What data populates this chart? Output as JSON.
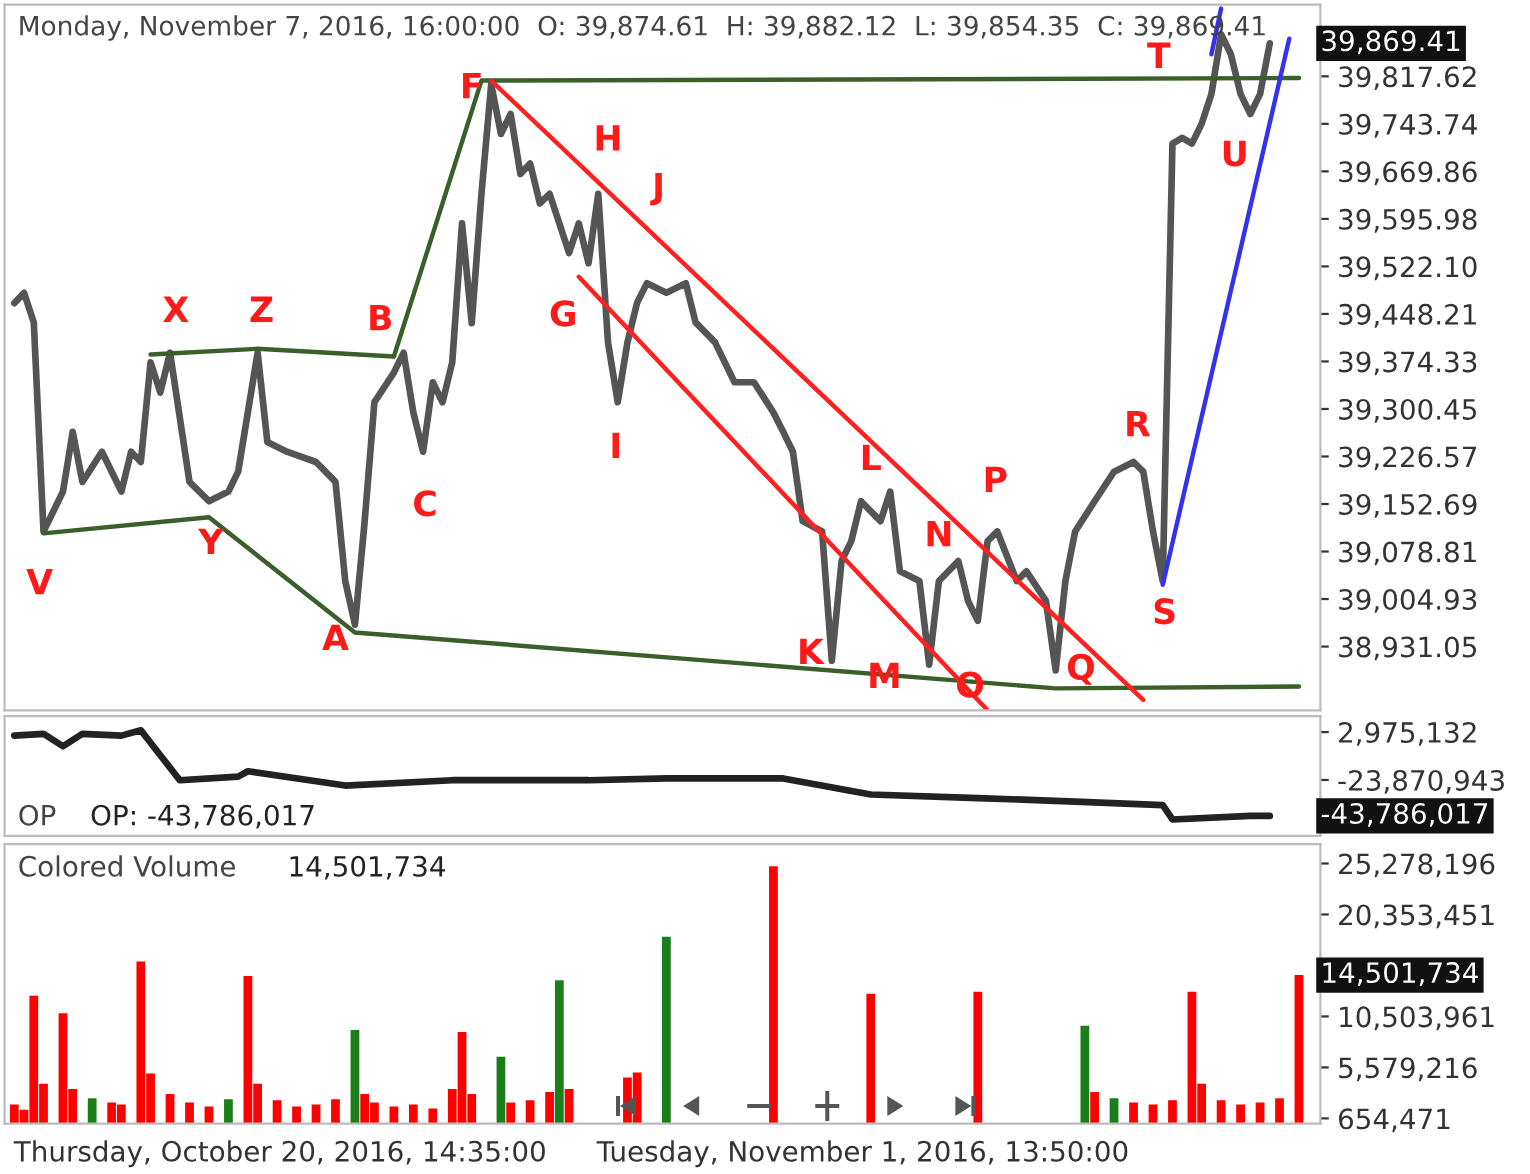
{
  "chart_data": [
    {
      "type": "line",
      "title": "Monday, November 7, 2016, 16:00:00  O: 39,874.61  H: 39,882.12  L: 39,854.35  C: 39,869.41",
      "ylim": [
        38832,
        39929
      ],
      "tick_labels": "y",
      "categories": [
        null,
        null,
        null,
        null,
        null,
        null,
        null,
        null,
        null,
        null,
        null,
        null,
        null,
        null,
        null,
        null,
        null,
        null,
        null,
        null,
        null,
        null,
        null,
        null,
        null,
        null,
        null,
        null,
        null,
        null,
        null,
        null,
        null,
        null,
        null,
        null,
        null,
        null,
        null,
        null,
        null,
        null,
        null,
        null,
        null,
        null,
        null,
        null,
        null,
        null,
        null,
        null,
        null,
        null,
        null,
        null,
        null,
        null,
        null,
        null,
        null,
        null,
        null,
        null,
        null,
        null,
        null,
        null,
        null,
        null,
        null,
        null,
        null,
        null,
        null,
        null,
        null,
        null,
        null,
        null,
        null,
        null,
        null,
        null,
        null,
        null,
        null,
        null,
        null,
        null,
        null,
        null,
        null,
        null,
        null,
        null,
        null,
        null,
        null,
        null,
        null,
        null,
        null,
        null,
        null,
        null,
        null,
        null,
        null,
        null,
        null,
        null,
        null,
        null,
        null,
        null,
        null,
        null,
        null,
        null,
        null,
        null,
        null,
        null,
        null,
        null,
        null,
        null,
        null,
        null,
        null,
        null,
        null
      ],
      "yticks": [
        {
          "value": 38931.05,
          "label": "38,931.05"
        },
        {
          "value": 39004.93,
          "label": "39,004.93"
        },
        {
          "value": 39078.81,
          "label": "39,078.81"
        },
        {
          "value": 39152.69,
          "label": "39,152.69"
        },
        {
          "value": 39226.57,
          "label": "39,226.57"
        },
        {
          "value": 39300.45,
          "label": "39,300.45"
        },
        {
          "value": 39374.33,
          "label": "39,374.33"
        },
        {
          "value": 39448.21,
          "label": "39,448.21"
        },
        {
          "value": 39522.1,
          "label": "39,522.10"
        },
        {
          "value": 39595.98,
          "label": "39,595.98"
        },
        {
          "value": 39669.86,
          "label": "39,669.86"
        },
        {
          "value": 39743.74,
          "label": "39,743.74"
        },
        {
          "value": 39817.62,
          "label": "39,817.62"
        }
      ],
      "series": [
        {
          "color": "#555555",
          "values": [
            39465,
            39481,
            39435,
            39110,
            null,
            39172,
            39265,
            39187,
            null,
            39234,
            null,
            39172,
            39234,
            39218,
            39373,
            39326,
            39388,
            null,
            39187,
            null,
            39157,
            null,
            39172,
            39203,
            null,
            39388,
            39249,
            null,
            39234,
            null,
            null,
            39218,
            null,
            39187,
            39033,
            38965,
            39126,
            39311,
            null,
            39357,
            39388,
            39295,
            39234,
            39342,
            39311,
            39373,
            39589,
            39434,
            39635,
            39805,
            39728,
            39759,
            39666,
            39682,
            39620,
            39635,
            null,
            39543,
            39589,
            39527,
            39635,
            39404,
            39311,
            39404,
            39466,
            39496,
            null,
            39481,
            null,
            39496,
            39435,
            null,
            39404,
            null,
            39342,
            null,
            39342,
            null,
            39295,
            39265,
            39234,
            39126,
            null,
            39110,
            38909,
            39064,
            39095,
            39157,
            null,
            39126,
            39172,
            39048,
            null,
            39033,
            38903,
            39033,
            null,
            39064,
            39002,
            38971,
            39095,
            39110,
            null,
            39033,
            39048,
            null,
            39002,
            38894,
            39033,
            39110,
            null,
            39157,
            null,
            39203,
            null,
            39218,
            39203,
            39110,
            39033,
            39713,
            39722,
            39713,
            39744,
            39790,
            39883,
            39852,
            39790,
            39759,
            39790,
            39869,
            null,
            null,
            null
          ]
        },
        {
          "color": "#3a5f2a",
          "values": [
            null,
            null,
            null,
            39107,
            null,
            null,
            null,
            null,
            null,
            null,
            null,
            null,
            null,
            null,
            null,
            null,
            null,
            null,
            null,
            null,
            39132,
            null,
            null,
            null,
            null,
            null,
            null,
            null,
            null,
            null,
            null,
            null,
            null,
            null,
            null,
            38953,
            null,
            null,
            null,
            null,
            null,
            null,
            null,
            null,
            null,
            null,
            null,
            null,
            null,
            null,
            null,
            null,
            null,
            null,
            null,
            null,
            null,
            null,
            null,
            null,
            null,
            null,
            null,
            null,
            null,
            null,
            null,
            null,
            null,
            null,
            null,
            null,
            null,
            null,
            null,
            null,
            null,
            null,
            null,
            null,
            null,
            null,
            null,
            null,
            null,
            null,
            null,
            null,
            null,
            null,
            null,
            null,
            null,
            null,
            null,
            null,
            null,
            null,
            null,
            null,
            null,
            null,
            null,
            null,
            null,
            null,
            null,
            38866,
            null,
            null,
            null,
            null,
            null,
            null,
            null,
            null,
            null,
            null,
            null,
            null,
            null,
            null,
            null,
            null,
            null,
            null,
            null,
            null,
            null,
            null,
            null,
            null,
            38869
          ]
        },
        {
          "color": "#3a5f2a",
          "values": [
            null,
            null,
            null,
            null,
            null,
            null,
            null,
            null,
            null,
            null,
            null,
            null,
            null,
            null,
            39385,
            null,
            null,
            null,
            null,
            null,
            null,
            null,
            null,
            null,
            null,
            39394,
            null,
            null,
            null,
            null,
            null,
            null,
            null,
            null,
            null,
            null,
            null,
            null,
            null,
            39382,
            null,
            null,
            null,
            null,
            null,
            null,
            null,
            null,
            39811,
            null,
            null,
            null,
            null,
            null,
            null,
            null,
            null,
            null,
            null,
            null,
            null,
            null,
            null,
            null,
            null,
            null,
            null,
            null,
            null,
            null,
            null,
            null,
            null,
            null,
            null,
            null,
            null,
            null,
            null,
            null,
            null,
            null,
            null,
            null,
            null,
            null,
            null,
            null,
            null,
            null,
            null,
            null,
            null,
            null,
            null,
            null,
            null,
            null,
            null,
            null,
            null,
            null,
            null,
            null,
            null,
            null,
            null,
            null,
            null,
            null,
            null,
            null,
            null,
            null,
            null,
            null,
            null,
            null,
            null,
            null,
            null,
            null,
            null,
            null,
            null,
            null,
            null,
            null,
            null,
            null,
            null,
            null,
            39815
          ]
        },
        {
          "color": "#ff2020",
          "values": [
            null,
            null,
            null,
            null,
            null,
            null,
            null,
            null,
            null,
            null,
            null,
            null,
            null,
            null,
            null,
            null,
            null,
            null,
            null,
            null,
            null,
            null,
            null,
            null,
            null,
            null,
            null,
            null,
            null,
            null,
            null,
            null,
            null,
            null,
            null,
            null,
            null,
            null,
            null,
            null,
            null,
            null,
            null,
            null,
            null,
            null,
            null,
            null,
            null,
            39811,
            null,
            null,
            null,
            null,
            null,
            null,
            null,
            null,
            null,
            null,
            null,
            null,
            null,
            null,
            null,
            null,
            null,
            null,
            null,
            null,
            null,
            null,
            null,
            null,
            null,
            null,
            null,
            null,
            null,
            null,
            null,
            null,
            null,
            null,
            null,
            null,
            null,
            null,
            null,
            null,
            null,
            null,
            null,
            null,
            null,
            null,
            null,
            null,
            null,
            null,
            null,
            null,
            null,
            null,
            null,
            null,
            null,
            null,
            null,
            null,
            null,
            null,
            null,
            null,
            null,
            null,
            38848,
            null,
            null,
            null,
            null,
            null,
            null,
            null,
            null,
            null,
            null,
            null,
            null,
            null,
            null,
            null,
            null
          ]
        },
        {
          "color": "#ff2020",
          "values": [
            null,
            null,
            null,
            null,
            null,
            null,
            null,
            null,
            null,
            null,
            null,
            null,
            null,
            null,
            null,
            null,
            null,
            null,
            null,
            null,
            null,
            null,
            null,
            null,
            null,
            null,
            null,
            null,
            null,
            null,
            null,
            null,
            null,
            null,
            null,
            null,
            null,
            null,
            null,
            null,
            null,
            null,
            null,
            null,
            null,
            null,
            null,
            null,
            null,
            null,
            null,
            null,
            null,
            null,
            null,
            null,
            null,
            null,
            39506,
            null,
            null,
            null,
            null,
            null,
            null,
            null,
            null,
            null,
            null,
            null,
            null,
            null,
            null,
            null,
            null,
            null,
            null,
            null,
            null,
            null,
            null,
            null,
            null,
            null,
            null,
            null,
            null,
            null,
            null,
            null,
            null,
            null,
            null,
            null,
            null,
            null,
            null,
            null,
            null,
            null,
            38832,
            null,
            null,
            null,
            null,
            null,
            null,
            null,
            null,
            null,
            null,
            null,
            null,
            null,
            null,
            null,
            null,
            null,
            null,
            null,
            null,
            null,
            null,
            null,
            null,
            null,
            null,
            null,
            null,
            null,
            null,
            null,
            null
          ]
        },
        {
          "color": "#3333ee",
          "values": [
            null,
            null,
            null,
            null,
            null,
            null,
            null,
            null,
            null,
            null,
            null,
            null,
            null,
            null,
            null,
            null,
            null,
            null,
            null,
            null,
            null,
            null,
            null,
            null,
            null,
            null,
            null,
            null,
            null,
            null,
            null,
            null,
            null,
            null,
            null,
            null,
            null,
            null,
            null,
            null,
            null,
            null,
            null,
            null,
            null,
            null,
            null,
            null,
            null,
            null,
            null,
            null,
            null,
            null,
            null,
            null,
            null,
            null,
            null,
            null,
            null,
            null,
            null,
            null,
            null,
            null,
            null,
            null,
            null,
            null,
            null,
            null,
            null,
            null,
            null,
            null,
            null,
            null,
            null,
            null,
            null,
            null,
            null,
            null,
            null,
            null,
            null,
            null,
            null,
            null,
            null,
            null,
            null,
            null,
            null,
            null,
            null,
            null,
            null,
            null,
            null,
            null,
            null,
            null,
            null,
            null,
            null,
            null,
            null,
            null,
            null,
            null,
            null,
            null,
            null,
            null,
            null,
            null,
            39027,
            null,
            null,
            null,
            null,
            null,
            null,
            null,
            null,
            null,
            null,
            null,
            null,
            39876,
            null
          ]
        },
        {
          "color": "#3333ee",
          "values": [
            null,
            null,
            null,
            null,
            null,
            null,
            null,
            null,
            null,
            null,
            null,
            null,
            null,
            null,
            null,
            null,
            null,
            null,
            null,
            null,
            null,
            null,
            null,
            null,
            null,
            null,
            null,
            null,
            null,
            null,
            null,
            null,
            null,
            null,
            null,
            null,
            null,
            null,
            null,
            null,
            null,
            null,
            null,
            null,
            null,
            null,
            null,
            null,
            null,
            null,
            null,
            null,
            null,
            null,
            null,
            null,
            null,
            null,
            null,
            null,
            null,
            null,
            null,
            null,
            null,
            null,
            null,
            null,
            null,
            null,
            null,
            null,
            null,
            null,
            null,
            null,
            null,
            null,
            null,
            null,
            null,
            null,
            null,
            null,
            null,
            null,
            null,
            null,
            null,
            null,
            null,
            null,
            null,
            null,
            null,
            null,
            null,
            null,
            null,
            null,
            null,
            null,
            null,
            null,
            null,
            null,
            null,
            null,
            null,
            null,
            null,
            null,
            null,
            null,
            null,
            null,
            null,
            null,
            null,
            null,
            null,
            null,
            null,
            39852,
            39923,
            null,
            null,
            null,
            null,
            null,
            null,
            null,
            null
          ]
        }
      ],
      "annotations": [
        "F",
        "H",
        "J",
        "G",
        "I",
        "X",
        "Z",
        "B",
        "C",
        "V",
        "Y",
        "A",
        "K",
        "L",
        "M",
        "N",
        "P",
        "O",
        "Q",
        "R",
        "S",
        "T",
        "U",
        "39,869.41"
      ]
    },
    {
      "type": "line",
      "title": "OP",
      "ylim": [
        -55200000,
        11900000
      ],
      "tick_labels": "y",
      "categories": [
        null,
        null,
        null,
        null,
        null,
        null,
        null,
        null,
        null,
        null,
        null,
        null,
        null,
        null,
        null,
        null,
        null,
        null,
        null,
        null,
        null,
        null,
        null,
        null,
        null,
        null,
        null,
        null,
        null,
        null,
        null,
        null,
        null,
        null,
        null,
        null,
        null,
        null,
        null,
        null,
        null,
        null,
        null,
        null,
        null,
        null,
        null,
        null,
        null,
        null,
        null,
        null,
        null,
        null,
        null,
        null,
        null,
        null,
        null,
        null,
        null,
        null,
        null,
        null,
        null,
        null,
        null,
        null,
        null,
        null,
        null,
        null,
        null,
        null,
        null,
        null,
        null,
        null,
        null,
        null,
        null,
        null,
        null,
        null,
        null,
        null,
        null,
        null,
        null,
        null,
        null,
        null,
        null,
        null,
        null,
        null,
        null,
        null,
        null,
        null,
        null,
        null,
        null,
        null,
        null,
        null,
        null,
        null,
        null,
        null,
        null,
        null,
        null,
        null,
        null,
        null,
        null,
        null,
        null,
        null,
        null,
        null,
        null,
        null,
        null,
        null,
        null,
        null,
        null,
        null,
        null,
        null,
        null
      ],
      "yticks": [
        {
          "value": 2975132,
          "label": "2,975,132"
        },
        {
          "value": -23870943,
          "label": "-23,870,943"
        }
      ],
      "series": [
        {
          "color": "#222222",
          "values": [
            1000000,
            null,
            null,
            2000000,
            null,
            -5000000,
            null,
            2000000,
            null,
            null,
            null,
            1000000,
            null,
            4000000,
            null,
            -10000000,
            null,
            -24000000,
            null,
            null,
            null,
            null,
            null,
            -22000000,
            -19000000,
            null,
            null,
            null,
            null,
            null,
            null,
            null,
            null,
            null,
            -27000000,
            null,
            null,
            null,
            null,
            null,
            null,
            null,
            null,
            null,
            null,
            -24000000,
            null,
            null,
            null,
            null,
            null,
            null,
            null,
            null,
            null,
            null,
            null,
            null,
            null,
            -24000000,
            null,
            null,
            null,
            null,
            null,
            null,
            null,
            -23000000,
            null,
            null,
            null,
            null,
            null,
            null,
            null,
            null,
            null,
            null,
            null,
            -23000000,
            null,
            null,
            null,
            null,
            null,
            null,
            null,
            null,
            -32000000,
            null,
            null,
            null,
            null,
            null,
            null,
            null,
            null,
            null,
            null,
            -34000000,
            null,
            null,
            null,
            null,
            null,
            null,
            null,
            null,
            null,
            -36000000,
            null,
            null,
            null,
            null,
            null,
            null,
            null,
            null,
            -38000000,
            -46000000,
            null,
            null,
            null,
            null,
            null,
            null,
            null,
            -44000000,
            null,
            -44000000,
            null,
            null,
            null
          ]
        }
      ],
      "annotations": [
        "OP: -43,786,017",
        "-43,786,017"
      ]
    },
    {
      "type": "bar",
      "title": "Colored Volume",
      "ylim": [
        160000,
        27150000
      ],
      "tick_labels": "y",
      "categories": [
        null,
        null,
        null,
        null,
        null,
        null,
        null,
        null,
        null,
        null,
        null,
        null,
        null,
        null,
        null,
        null,
        null,
        null,
        null,
        null,
        null,
        null,
        null,
        null,
        null,
        null,
        null,
        null,
        null,
        null,
        null,
        null,
        null,
        null,
        null,
        null,
        null,
        null,
        null,
        null,
        null,
        null,
        null,
        null,
        null,
        null,
        null,
        null,
        null,
        null,
        null,
        null,
        null,
        null,
        null,
        null,
        null,
        null,
        null,
        null,
        null,
        null,
        null,
        null,
        null,
        null,
        null,
        null,
        null,
        null,
        null,
        null,
        null,
        null,
        null,
        null,
        null,
        null,
        null,
        null,
        null,
        null,
        null,
        null,
        null,
        null,
        null,
        null,
        null,
        null,
        null,
        null,
        null,
        null,
        null,
        null,
        null,
        null,
        null,
        null,
        null,
        null,
        null,
        null,
        null,
        null,
        null,
        null,
        null,
        null,
        null,
        null,
        null,
        null,
        null,
        null,
        null,
        null,
        null,
        null,
        null,
        null,
        null,
        null,
        null,
        null,
        null,
        null,
        null,
        null,
        null,
        null,
        null
      ],
      "yticks": [
        {
          "value": 654471,
          "label": "654,471"
        },
        {
          "value": 5579216,
          "label": "5,579,216"
        },
        {
          "value": 10503961,
          "label": "10,503,961"
        },
        {
          "value": 20353451,
          "label": "20,353,451"
        },
        {
          "value": 25278196,
          "label": "25,278,196"
        }
      ],
      "series": [
        {
          "values": [
            2000000,
            1500000,
            12500000,
            4000000,
            null,
            10800000,
            3500000,
            null,
            2600000,
            null,
            2200000,
            2000000,
            null,
            15800000,
            5000000,
            null,
            3000000,
            null,
            2200000,
            null,
            1800000,
            null,
            2500000,
            null,
            14400000,
            4000000,
            null,
            2400000,
            null,
            1800000,
            null,
            2000000,
            null,
            2500000,
            null,
            9200000,
            3000000,
            2200000,
            null,
            1800000,
            null,
            2000000,
            null,
            1600000,
            null,
            3500000,
            9000000,
            3000000,
            null,
            null,
            6600000,
            2200000,
            null,
            2400000,
            null,
            3200000,
            14000000,
            3500000,
            null,
            null,
            null,
            null,
            null,
            4600000,
            5100000,
            null,
            null,
            18200000,
            null,
            null,
            null,
            null,
            null,
            null,
            null,
            null,
            null,
            null,
            25000000,
            null,
            null,
            null,
            null,
            null,
            null,
            null,
            null,
            null,
            12700000,
            null,
            null,
            null,
            null,
            null,
            null,
            null,
            null,
            null,
            null,
            12900000,
            null,
            null,
            null,
            null,
            null,
            null,
            null,
            null,
            null,
            null,
            9600000,
            3200000,
            null,
            2600000,
            null,
            2200000,
            null,
            2000000,
            null,
            2400000,
            null,
            12900000,
            4000000,
            null,
            2400000,
            null,
            2000000,
            null,
            2200000,
            null,
            2600000,
            null,
            14500000
          ],
          "colors": [
            "#ff0000",
            "#ff0000",
            "#ff0000",
            "#ff0000",
            "#ff0000",
            "#ff0000",
            "#ff0000",
            "#ff0000",
            "#1a7f1a",
            "#ff0000",
            "#ff0000",
            "#ff0000",
            "#ff0000",
            "#ff0000",
            "#ff0000",
            "#ff0000",
            "#ff0000",
            "#ff0000",
            "#ff0000",
            "#ff0000",
            "#ff0000",
            "#ff0000",
            "#1a7f1a",
            "#ff0000",
            "#ff0000",
            "#ff0000",
            "#ff0000",
            "#ff0000",
            "#ff0000",
            "#ff0000",
            "#ff0000",
            "#ff0000",
            "#ff0000",
            "#ff0000",
            "#ff0000",
            "#1a7f1a",
            "#ff0000",
            "#ff0000",
            "#ff0000",
            "#ff0000",
            "#ff0000",
            "#ff0000",
            "#ff0000",
            "#ff0000",
            "#ff0000",
            "#ff0000",
            "#ff0000",
            "#ff0000",
            "#ff0000",
            "#ff0000",
            "#1a7f1a",
            "#ff0000",
            "#ff0000",
            "#ff0000",
            "#ff0000",
            "#ff0000",
            "#1a7f1a",
            "#ff0000",
            "#ff0000",
            "#ff0000",
            "#ff0000",
            "#ff0000",
            "#ff0000",
            "#ff0000",
            "#ff0000",
            "#ff0000",
            "#ff0000",
            "#1a7f1a",
            "#ff0000",
            "#ff0000",
            "#ff0000",
            "#ff0000",
            "#ff0000",
            "#ff0000",
            "#ff0000",
            "#ff0000",
            "#ff0000",
            "#ff0000",
            "#ff0000",
            "#ff0000",
            "#ff0000",
            "#ff0000",
            "#ff0000",
            "#ff0000",
            "#ff0000",
            "#ff0000",
            "#ff0000",
            "#ff0000",
            "#ff0000",
            "#ff0000",
            "#ff0000",
            "#ff0000",
            "#ff0000",
            "#ff0000",
            "#ff0000",
            "#ff0000",
            "#ff0000",
            "#ff0000",
            "#ff0000",
            "#ff0000",
            "#ff0000",
            "#ff0000",
            "#ff0000",
            "#ff0000",
            "#ff0000",
            "#ff0000",
            "#ff0000",
            "#ff0000",
            "#1a7f1a",
            "#ff0000",
            "#1a7f1a",
            "#ff0000",
            "#ff0000",
            "#1a7f1a",
            "#ff0000",
            "#ff0000",
            "#ff0000",
            "#ff0000",
            "#ff0000",
            "#ff0000",
            "#ff0000",
            "#ff0000",
            "#ff0000",
            "#ff0000",
            "#ff0000",
            "#ff0000",
            "#ff0000",
            "#ff0000",
            "#ff0000",
            "#ff0000",
            "#ff0000",
            "#ff0000",
            "#ff0000"
          ]
        }
      ],
      "annotations": [
        "14,501,734",
        "Thursday, October 20, 2016, 14:35:00",
        "Tuesday, November 1, 2016, 13:50:00",
        "14,501,734"
      ]
    }
  ]
}
